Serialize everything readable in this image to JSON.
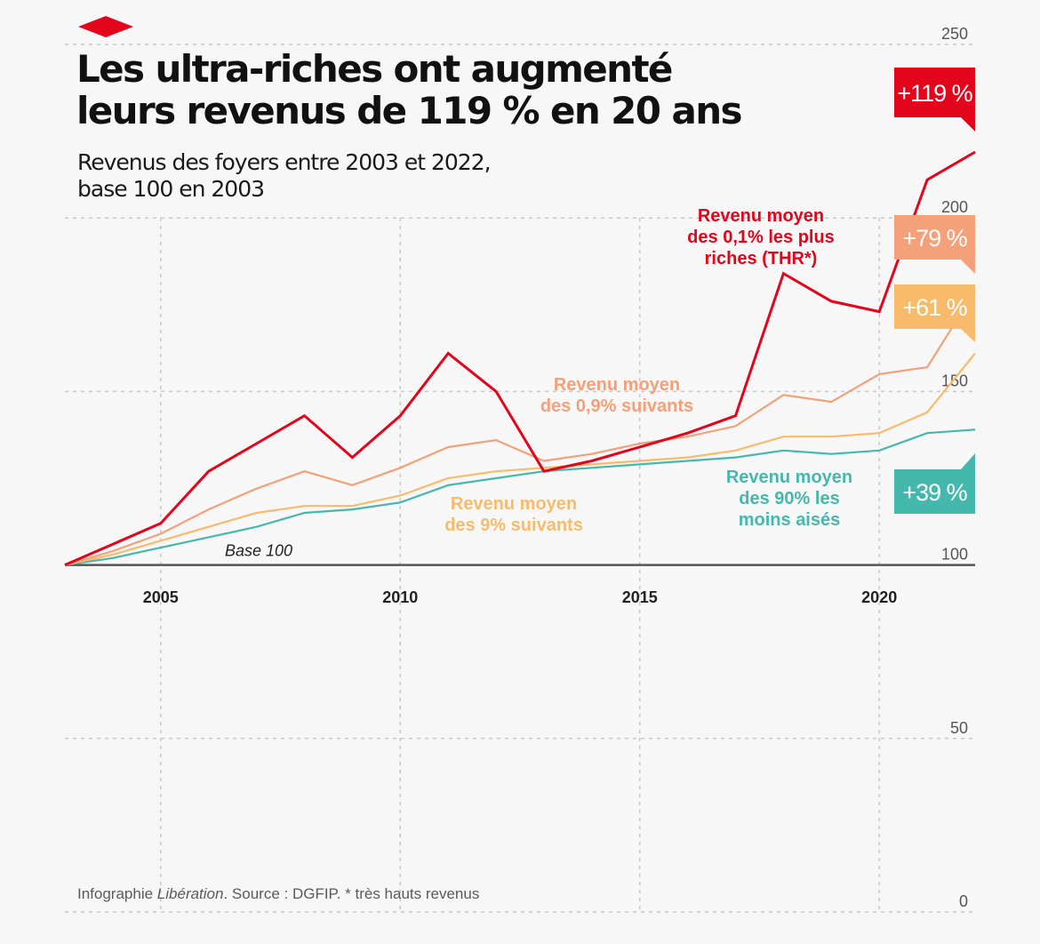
{
  "header": {
    "title_line1": "Les ultra-riches ont augmenté",
    "title_line2": "leurs revenus de 119 % en 20 ans",
    "subtitle_line1": "Revenus des foyers entre 2003 et 2022,",
    "subtitle_line2": "base 100 en 2003"
  },
  "footer": {
    "source_prefix": "Infographie ",
    "source_brand": "Libération",
    "source_suffix": ". Source : DGFIP. * très hauts revenus"
  },
  "colors": {
    "background": "#f7f7f7",
    "logo": "#e3051b",
    "grid": "#c9c9c9",
    "axis": "#555555"
  },
  "chart_data": {
    "type": "line",
    "xlim": [
      2003,
      2022
    ],
    "ylim": [
      0,
      250
    ],
    "xticks": [
      2005,
      2010,
      2015,
      2020
    ],
    "yticks": [
      0,
      50,
      100,
      150,
      200,
      250
    ],
    "grid": true,
    "baseline": {
      "value": 100,
      "label": "Base 100"
    },
    "x": [
      2003,
      2004,
      2005,
      2006,
      2007,
      2008,
      2009,
      2010,
      2011,
      2012,
      2013,
      2014,
      2015,
      2016,
      2017,
      2018,
      2019,
      2020,
      2021,
      2022
    ],
    "series": [
      {
        "name_lines": [
          "Revenu moyen",
          "des 0,1% les plus",
          "riches (THR*)"
        ],
        "color": "#e3051b",
        "badge": "+119 %",
        "badge_color": "#e3051b",
        "values": [
          100,
          106,
          112,
          127,
          135,
          143,
          131,
          143,
          161,
          150,
          127,
          130,
          134,
          138,
          143,
          184,
          176,
          173,
          211,
          219
        ]
      },
      {
        "name_lines": [
          "Revenu moyen",
          "des 0,9% suivants"
        ],
        "color": "#f4a079",
        "badge": "+79 %",
        "badge_color": "#f4a079",
        "values": [
          100,
          104,
          109,
          116,
          122,
          127,
          123,
          128,
          134,
          136,
          130,
          132,
          135,
          137,
          140,
          149,
          147,
          155,
          157,
          179
        ]
      },
      {
        "name_lines": [
          "Revenu moyen",
          "des 9% suivants"
        ],
        "color": "#f8bb6b",
        "badge": "+61 %",
        "badge_color": "#f8bb6b",
        "values": [
          100,
          103,
          107,
          111,
          115,
          117,
          117,
          120,
          125,
          127,
          128,
          129,
          130,
          131,
          133,
          137,
          137,
          138,
          144,
          161
        ]
      },
      {
        "name_lines": [
          "Revenu moyen",
          "des 90% les",
          "moins aisés"
        ],
        "color": "#45b8ad",
        "badge": "+39 %",
        "badge_color": "#45b8ad",
        "values": [
          100,
          102,
          105,
          108,
          111,
          115,
          116,
          118,
          123,
          125,
          127,
          128,
          129,
          130,
          131,
          133,
          132,
          133,
          138,
          139
        ]
      }
    ]
  }
}
